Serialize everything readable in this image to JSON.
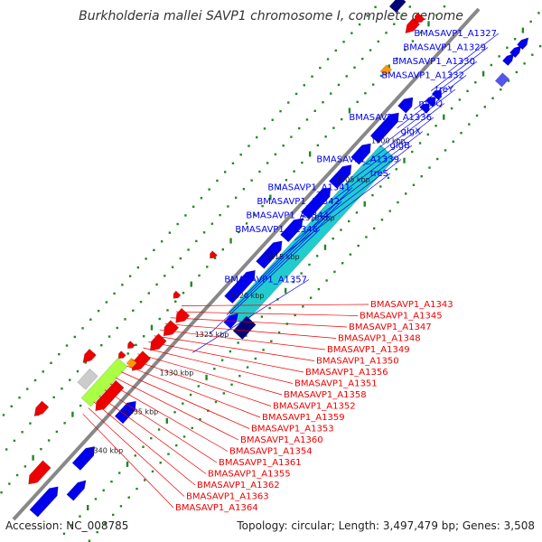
{
  "title": "Burkholderia mallei SAVP1 chromosome I, complete genome",
  "accession": "Accession: NC_008785",
  "topology": "Topology: circular; Length: 3,497,479 bp; Genes: 3,508",
  "colors": {
    "forward_gene": "#0000ee",
    "reverse_gene": "#ee0000",
    "backbone": "#888888",
    "highlight_block": "#22cccc",
    "dots": "#228822"
  },
  "ticks": [
    {
      "label": "1300 kbp"
    },
    {
      "label": "1305 kbp"
    },
    {
      "label": "1310 kbp"
    },
    {
      "label": "1315 kbp"
    },
    {
      "label": "1320 kbp"
    },
    {
      "label": "1325 kbp"
    },
    {
      "label": "1330 kbp"
    },
    {
      "label": "1335 kbp"
    },
    {
      "label": "1340 kbp"
    }
  ],
  "blue_labels": [
    "BMASAVP1_A1327",
    "BMASAVP1_A1329",
    "BMASAVP1_A1330",
    "BMASAVP1_A1332",
    "treY",
    "malQ",
    "BMASAVP1_A1336",
    "glgX",
    "glgB",
    "BMASAVP1_A1339",
    "treS",
    "BMASAVP1_A1341",
    "BMASAVP1_A1342",
    "BMASAVP1_A1344",
    "BMASAVP1_A1346",
    "BMASAVP1_A1357"
  ],
  "red_labels": [
    "BMASAVP1_A1343",
    "BMASAVP1_A1345",
    "BMASAVP1_A1347",
    "BMASAVP1_A1348",
    "BMASAVP1_A1349",
    "BMASAVP1_A1350",
    "BMASAVP1_A1356",
    "BMASAVP1_A1351",
    "BMASAVP1_A1358",
    "BMASAVP1_A1352",
    "BMASAVP1_A1359",
    "BMASAVP1_A1353",
    "BMASAVP1_A1360",
    "BMASAVP1_A1354",
    "BMASAVP1_A1361",
    "BMASAVP1_A1355",
    "BMASAVP1_A1362",
    "BMASAVP1_A1363",
    "BMASAVP1_A1364"
  ]
}
